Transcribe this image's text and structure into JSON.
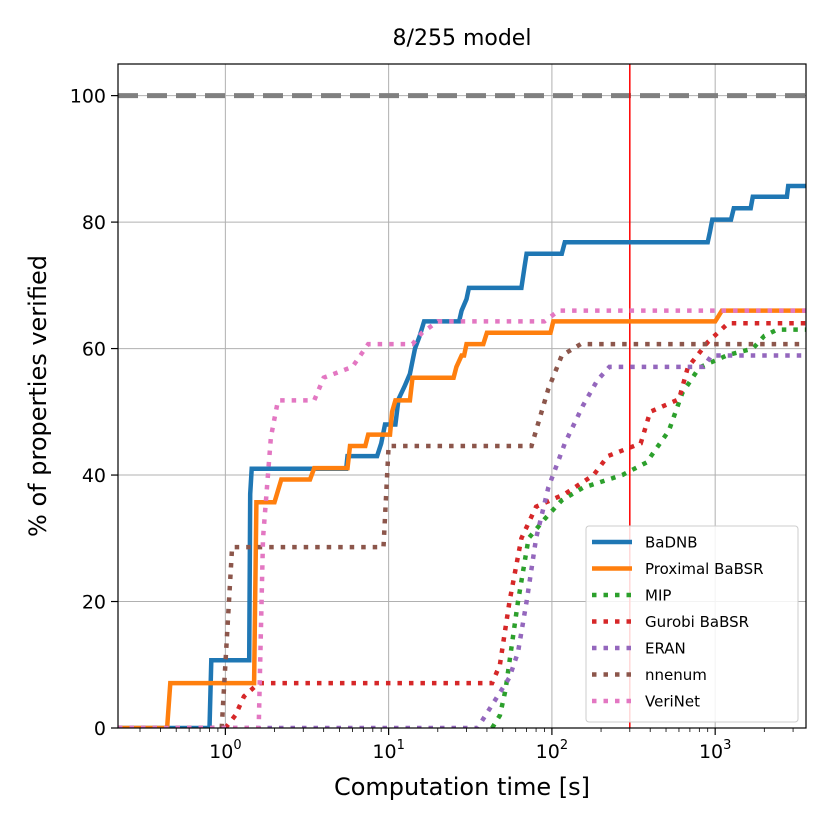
{
  "chart_data": {
    "type": "line",
    "title": "8/255 model",
    "xlabel": "Computation time [s]",
    "ylabel": "% of properties verified",
    "xscale": "log",
    "xlim": [
      0.22,
      3600
    ],
    "ylim": [
      0,
      105
    ],
    "grid": true,
    "x_ticks": [
      {
        "value": 1,
        "base": "10",
        "exp": "0"
      },
      {
        "value": 10,
        "base": "10",
        "exp": "1"
      },
      {
        "value": 100,
        "base": "10",
        "exp": "2"
      },
      {
        "value": 1000,
        "base": "10",
        "exp": "3"
      }
    ],
    "y_ticks": [
      0,
      20,
      40,
      60,
      80,
      100
    ],
    "reference_lines": [
      {
        "orientation": "horizontal",
        "value": 100,
        "color": "#808080",
        "style": "dashed"
      },
      {
        "orientation": "vertical",
        "value": 300,
        "color": "#ff0000",
        "style": "solid"
      }
    ],
    "legend_position": "lower-right",
    "series": [
      {
        "name": "BaDNB",
        "color": "#1f77b4",
        "style": "solid",
        "points": [
          [
            0.22,
            0
          ],
          [
            0.8,
            0
          ],
          [
            0.82,
            10.7
          ],
          [
            1.4,
            10.7
          ],
          [
            1.42,
            37
          ],
          [
            1.45,
            41
          ],
          [
            5.5,
            41
          ],
          [
            5.6,
            43
          ],
          [
            8.5,
            43
          ],
          [
            9,
            45
          ],
          [
            9.5,
            48
          ],
          [
            11,
            48
          ],
          [
            11.5,
            52
          ],
          [
            12.5,
            54
          ],
          [
            13.5,
            56
          ],
          [
            14.5,
            60
          ],
          [
            15.5,
            62
          ],
          [
            16.5,
            64.3
          ],
          [
            27,
            64.3
          ],
          [
            28,
            66
          ],
          [
            30,
            67.8
          ],
          [
            31,
            69.6
          ],
          [
            65,
            69.6
          ],
          [
            68,
            73
          ],
          [
            70,
            75
          ],
          [
            115,
            75
          ],
          [
            120,
            76.8
          ],
          [
            900,
            76.8
          ],
          [
            930,
            78.5
          ],
          [
            960,
            80.4
          ],
          [
            1250,
            80.4
          ],
          [
            1300,
            82.2
          ],
          [
            1650,
            82.2
          ],
          [
            1700,
            84
          ],
          [
            2750,
            84
          ],
          [
            2800,
            85.7
          ],
          [
            3600,
            85.7
          ]
        ]
      },
      {
        "name": "Proximal BaBSR",
        "color": "#ff7f0e",
        "style": "solid",
        "points": [
          [
            0.22,
            0
          ],
          [
            0.44,
            0
          ],
          [
            0.46,
            7.1
          ],
          [
            1.5,
            7.1
          ],
          [
            1.55,
            35.7
          ],
          [
            2,
            35.7
          ],
          [
            2.2,
            39.3
          ],
          [
            3.3,
            39.3
          ],
          [
            3.5,
            41.1
          ],
          [
            5.6,
            41.1
          ],
          [
            5.8,
            44.6
          ],
          [
            7.2,
            44.6
          ],
          [
            7.5,
            46.4
          ],
          [
            10.2,
            46.4
          ],
          [
            10.5,
            50
          ],
          [
            11,
            51.8
          ],
          [
            13.5,
            51.8
          ],
          [
            14,
            55.4
          ],
          [
            25,
            55.4
          ],
          [
            26,
            57.1
          ],
          [
            28,
            58.9
          ],
          [
            29,
            58.9
          ],
          [
            30,
            60.7
          ],
          [
            38,
            60.7
          ],
          [
            40,
            62.5
          ],
          [
            98,
            62.5
          ],
          [
            102,
            64.3
          ],
          [
            1000,
            64.3
          ],
          [
            1100,
            66
          ],
          [
            3600,
            66
          ]
        ]
      },
      {
        "name": "MIP",
        "color": "#2ca02c",
        "style": "dotted",
        "points": [
          [
            43,
            0
          ],
          [
            48,
            2
          ],
          [
            52,
            6
          ],
          [
            56,
            12
          ],
          [
            62,
            20
          ],
          [
            72,
            30
          ],
          [
            90,
            33
          ],
          [
            115,
            36
          ],
          [
            155,
            38
          ],
          [
            270,
            40
          ],
          [
            380,
            42
          ],
          [
            520,
            47
          ],
          [
            630,
            53
          ],
          [
            800,
            57
          ],
          [
            1200,
            59
          ],
          [
            1700,
            60
          ],
          [
            2000,
            62
          ],
          [
            2400,
            63
          ],
          [
            3600,
            63
          ]
        ]
      },
      {
        "name": "Gurobi BaBSR",
        "color": "#d62728",
        "style": "dotted",
        "points": [
          [
            1,
            0
          ],
          [
            1.15,
            2
          ],
          [
            1.3,
            5
          ],
          [
            1.6,
            7.1
          ],
          [
            43,
            7.1
          ],
          [
            48,
            10
          ],
          [
            55,
            20
          ],
          [
            65,
            30
          ],
          [
            80,
            35
          ],
          [
            120,
            37
          ],
          [
            180,
            40
          ],
          [
            220,
            43
          ],
          [
            350,
            45
          ],
          [
            400,
            50
          ],
          [
            600,
            52
          ],
          [
            680,
            57
          ],
          [
            900,
            61
          ],
          [
            1200,
            64
          ],
          [
            3600,
            64
          ]
        ]
      },
      {
        "name": "ERAN",
        "color": "#9467bd",
        "style": "dotted",
        "points": [
          [
            0.22,
            0
          ],
          [
            35,
            0
          ],
          [
            55,
            8
          ],
          [
            62,
            12
          ],
          [
            70,
            20
          ],
          [
            80,
            30
          ],
          [
            95,
            38
          ],
          [
            120,
            45
          ],
          [
            155,
            51
          ],
          [
            190,
            55
          ],
          [
            225,
            57.1
          ],
          [
            850,
            57.1
          ],
          [
            950,
            58.9
          ],
          [
            3600,
            58.9
          ]
        ]
      },
      {
        "name": "nnenum",
        "color": "#8c564b",
        "style": "dotted",
        "points": [
          [
            0.22,
            0
          ],
          [
            0.95,
            0
          ],
          [
            1.1,
            28.6
          ],
          [
            9.3,
            28.6
          ],
          [
            10,
            44.6
          ],
          [
            75,
            44.6
          ],
          [
            95,
            53.6
          ],
          [
            115,
            58.9
          ],
          [
            150,
            60.7
          ],
          [
            3600,
            60.7
          ]
        ]
      },
      {
        "name": "VeriNet",
        "color": "#e377c2",
        "style": "dotted",
        "points": [
          [
            0.22,
            0
          ],
          [
            1.6,
            0
          ],
          [
            1.7,
            30
          ],
          [
            1.9,
            46
          ],
          [
            2.1,
            51.8
          ],
          [
            3.5,
            51.8
          ],
          [
            4,
            55.4
          ],
          [
            6,
            57.1
          ],
          [
            7.5,
            60.7
          ],
          [
            14,
            60.7
          ],
          [
            16,
            62.5
          ],
          [
            20,
            64.3
          ],
          [
            90,
            64.3
          ],
          [
            110,
            66
          ],
          [
            3600,
            66
          ]
        ]
      }
    ]
  }
}
